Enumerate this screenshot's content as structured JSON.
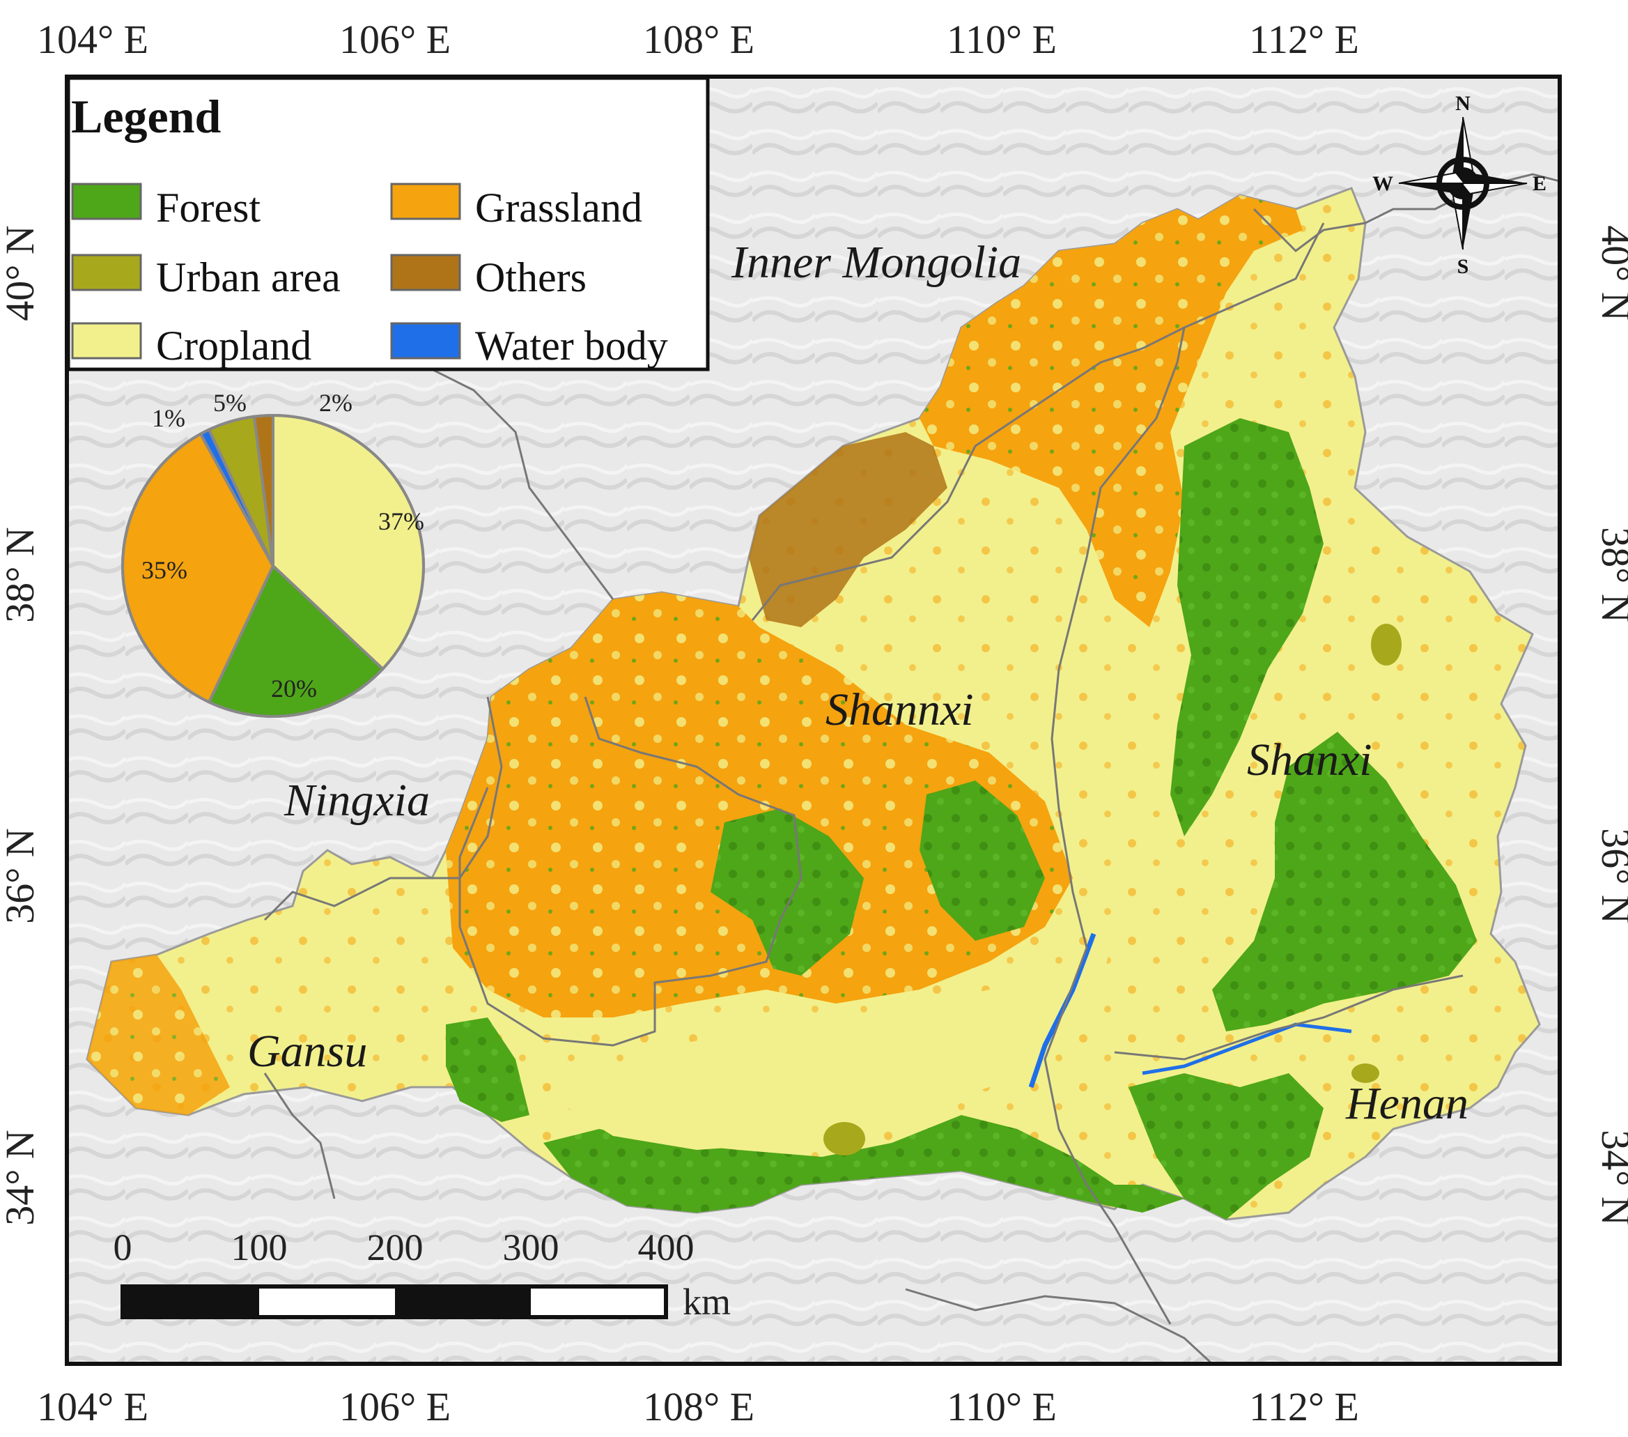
{
  "map": {
    "lon_labels": [
      "104° E",
      "106° E",
      "108° E",
      "110° E",
      "112° E"
    ],
    "lat_labels": [
      "40° N",
      "38° N",
      "36° N",
      "34° N"
    ],
    "regions": [
      "Inner Mongolia",
      "Shannxi",
      "Shanxi",
      "Ningxia",
      "Gansu",
      "Henan"
    ]
  },
  "legend": {
    "title": "Legend",
    "items": [
      {
        "label": "Forest",
        "color": "#4ea619"
      },
      {
        "label": "Grassland",
        "color": "#f5a30f"
      },
      {
        "label": "Urban area",
        "color": "#a8a81c"
      },
      {
        "label": "Others",
        "color": "#b07418"
      },
      {
        "label": "Cropland",
        "color": "#f2f08c"
      },
      {
        "label": "Water body",
        "color": "#1f6fe8"
      }
    ]
  },
  "pie": {
    "slices": [
      {
        "category": "Cropland",
        "percent": 37,
        "label": "37%",
        "color": "#f2f08c"
      },
      {
        "category": "Forest",
        "percent": 20,
        "label": "20%",
        "color": "#4ea619"
      },
      {
        "category": "Grassland",
        "percent": 35,
        "label": "35%",
        "color": "#f5a30f"
      },
      {
        "category": "Water body",
        "percent": 1,
        "label": "1%",
        "color": "#1f6fe8"
      },
      {
        "category": "Urban area",
        "percent": 5,
        "label": "5%",
        "color": "#a8a81c"
      },
      {
        "category": "Others",
        "percent": 2,
        "label": "2%",
        "color": "#b07418"
      }
    ]
  },
  "scale_bar": {
    "ticks": [
      "0",
      "100",
      "200",
      "300",
      "400"
    ],
    "unit": "km"
  },
  "compass": {
    "n": "N",
    "s": "S",
    "e": "E",
    "w": "W"
  }
}
